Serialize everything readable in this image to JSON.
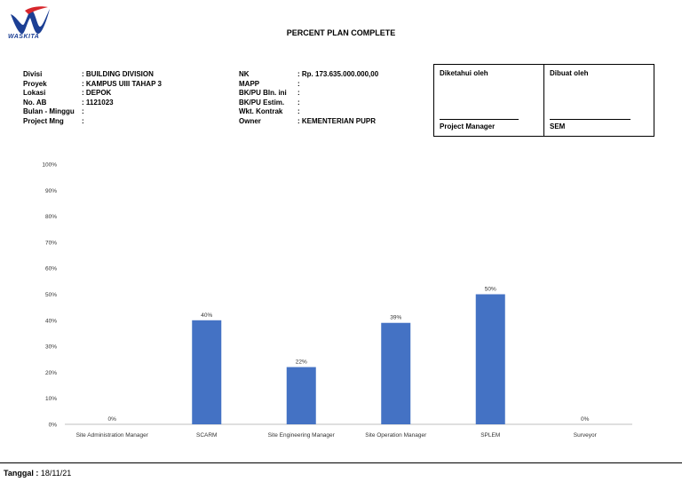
{
  "header": {
    "logo_text": "WASKITA",
    "title": "PERCENT PLAN COMPLETE"
  },
  "info_left": [
    {
      "label": "Divisi",
      "value": ": BUILDING DIVISION"
    },
    {
      "label": "Proyek",
      "value": ": KAMPUS UIII TAHAP 3"
    },
    {
      "label": "Lokasi",
      "value": ": DEPOK"
    },
    {
      "label": "No. AB",
      "value": ": 1121023"
    },
    {
      "label": "Bulan - Minggu",
      "value": ":"
    },
    {
      "label": "Project Mng",
      "value": ":"
    }
  ],
  "info_mid": [
    {
      "label": "NK",
      "value": ": Rp. 173.635.000.000,00"
    },
    {
      "label": "MAPP",
      "value": ":"
    },
    {
      "label": "BK/PU Bln. ini",
      "value": ":"
    },
    {
      "label": "BK/PU Estim.",
      "value": ":"
    },
    {
      "label": "Wkt. Kontrak",
      "value": ":"
    },
    {
      "label": "Owner",
      "value": ": KEMENTERIAN PUPR"
    }
  ],
  "signatures": {
    "left_head": "Diketahui oleh",
    "left_role": "Project Manager",
    "right_head": "Dibuat oleh",
    "right_role": "SEM"
  },
  "chart_data": {
    "type": "bar",
    "title": "",
    "xlabel": "",
    "ylabel": "",
    "ylim": [
      0,
      100
    ],
    "y_ticks": [
      "0%",
      "10%",
      "20%",
      "30%",
      "40%",
      "50%",
      "60%",
      "70%",
      "80%",
      "90%",
      "100%"
    ],
    "categories": [
      "Site Administration Manager",
      "SCARM",
      "Site Engineering Manager",
      "Site Operation Manager",
      "SPLEM",
      "Surveyor"
    ],
    "values": [
      0,
      40,
      22,
      39,
      50,
      0
    ],
    "data_labels": [
      "0%",
      "40%",
      "22%",
      "39%",
      "50%",
      "0%"
    ],
    "grid": false,
    "legend": "none",
    "bar_color": "#4472c4"
  },
  "footer": {
    "label": "Tanggal :",
    "value": "18/11/21"
  }
}
